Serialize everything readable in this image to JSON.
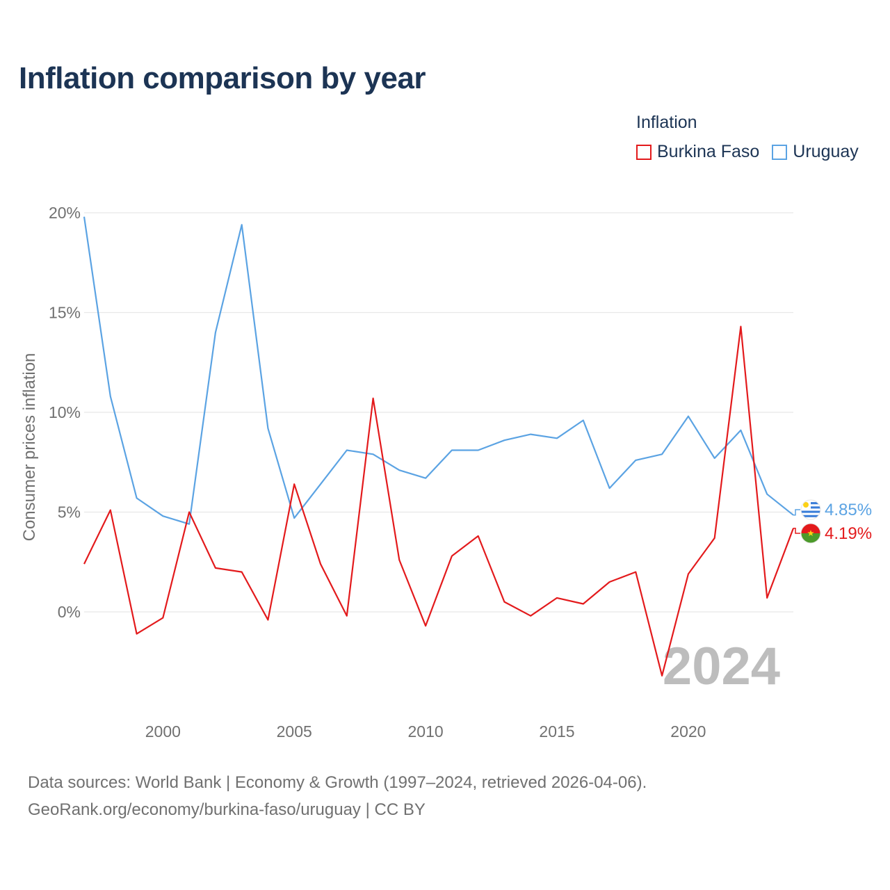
{
  "title": "Inflation comparison by year",
  "legend": {
    "title": "Inflation",
    "items": [
      {
        "label": "Burkina Faso",
        "color": "#e31a1c"
      },
      {
        "label": "Uruguay",
        "color": "#5ba3e3"
      }
    ]
  },
  "source": {
    "line1": "Data sources: World Bank | Economy & Growth (1997–2024, retrieved 2026-04-06).",
    "line2": "GeoRank.org/economy/burkina-faso/uruguay | CC BY"
  },
  "chart_data": {
    "type": "line",
    "title": "Inflation comparison by year",
    "xlabel": "",
    "ylabel": "Consumer prices inflation",
    "xlim": [
      1997,
      2024
    ],
    "ylim": [
      -4,
      20
    ],
    "grid": true,
    "legend_position": "top-right",
    "current_year_label": "2024",
    "x_ticks": [
      2000,
      2005,
      2010,
      2015,
      2020
    ],
    "x_tick_labels": [
      "2000",
      "2005",
      "2010",
      "2015",
      "2020"
    ],
    "y_ticks": [
      0,
      5,
      10,
      15,
      20
    ],
    "y_tick_labels": [
      "0%",
      "5%",
      "10%",
      "15%",
      "20%"
    ],
    "x": [
      1997,
      1998,
      1999,
      2000,
      2001,
      2002,
      2003,
      2004,
      2005,
      2006,
      2007,
      2008,
      2009,
      2010,
      2011,
      2012,
      2013,
      2014,
      2015,
      2016,
      2017,
      2018,
      2019,
      2020,
      2021,
      2022,
      2023,
      2024
    ],
    "series": [
      {
        "name": "Burkina Faso",
        "color": "#e31a1c",
        "end_label": "4.19%",
        "flag": "burkina-faso-flag",
        "values": [
          2.4,
          5.1,
          -1.1,
          -0.3,
          5.0,
          2.2,
          2.0,
          -0.4,
          6.4,
          2.4,
          -0.2,
          10.7,
          2.6,
          -0.7,
          2.8,
          3.8,
          0.5,
          -0.2,
          0.7,
          0.4,
          1.5,
          2.0,
          -3.2,
          1.9,
          3.7,
          14.3,
          0.7,
          4.19
        ]
      },
      {
        "name": "Uruguay",
        "color": "#5ba3e3",
        "end_label": "4.85%",
        "flag": "uruguay-flag",
        "values": [
          19.8,
          10.8,
          5.7,
          4.8,
          4.4,
          14.0,
          19.4,
          9.2,
          4.7,
          6.4,
          8.1,
          7.9,
          7.1,
          6.7,
          8.1,
          8.1,
          8.6,
          8.9,
          8.7,
          9.6,
          6.2,
          7.6,
          7.9,
          9.8,
          7.7,
          9.1,
          5.9,
          4.85
        ]
      }
    ]
  }
}
